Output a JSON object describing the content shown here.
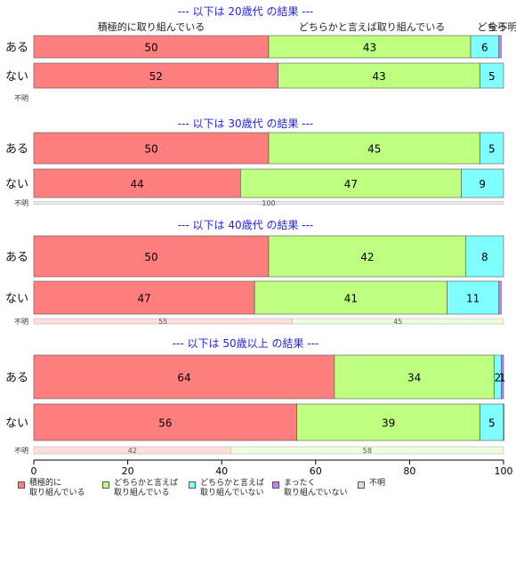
{
  "chart_data": {
    "type": "bar",
    "orientation": "horizontal",
    "stacked": true,
    "xlim": [
      0,
      100
    ],
    "x_ticks": [
      "0",
      "20",
      "40",
      "60",
      "80",
      "100"
    ],
    "categories": [
      "積極的に取り組んでいる",
      "どちらかと言えば取り組んでいる",
      "どちらかと言えば取り組んでいない",
      "まったく取り組んでいない",
      "不明"
    ],
    "colors": [
      "#ff7f7f",
      "#bfff7f",
      "#7fffff",
      "#bf7fff",
      "#dddddd"
    ],
    "segment_labels_top": [
      "積極的に取り組んでいる",
      "どちらかと言えば取り組んでいる",
      "どちら",
      "全不明"
    ],
    "legend": [
      {
        "label": "積極的に\n取り組んでいる",
        "color": "#ff7f7f"
      },
      {
        "label": "どちらかと言えば\n取り組んでいる",
        "color": "#bfff7f"
      },
      {
        "label": "どちらかと言えば\n取り組んでいない",
        "color": "#7fffff"
      },
      {
        "label": "まったく\n取り組んでいない",
        "color": "#bf7fff"
      },
      {
        "label": "不明",
        "color": "#dddddd"
      }
    ],
    "groups": [
      {
        "title": "--- 以下は 20歳代 の結果 ---",
        "rows": [
          {
            "label": "ある",
            "values": [
              50,
              43,
              6,
              0.5,
              0
            ],
            "labels": [
              "50",
              "43",
              "6",
              "",
              ""
            ]
          },
          {
            "label": "ない",
            "values": [
              52,
              43,
              5,
              0,
              0
            ],
            "labels": [
              "52",
              "43",
              "5",
              "",
              ""
            ]
          }
        ],
        "unknown": {
          "label": "不明",
          "values": [],
          "labels": []
        }
      },
      {
        "title": "--- 以下は 30歳代 の結果 ---",
        "rows": [
          {
            "label": "ある",
            "values": [
              50,
              45,
              5,
              0,
              0
            ],
            "labels": [
              "50",
              "45",
              "5",
              "",
              ""
            ]
          },
          {
            "label": "ない",
            "values": [
              44,
              47,
              9,
              0,
              0
            ],
            "labels": [
              "44",
              "47",
              "9",
              "",
              ""
            ]
          }
        ],
        "unknown": {
          "label": "不明",
          "values": [
            0,
            0,
            0,
            0,
            100
          ],
          "labels": [
            "",
            "",
            "",
            "",
            "100"
          ]
        }
      },
      {
        "title": "--- 以下は 40歳代 の結果 ---",
        "rows": [
          {
            "label": "ある",
            "values": [
              50,
              42,
              8,
              0,
              0
            ],
            "labels": [
              "50",
              "42",
              "8",
              "",
              ""
            ]
          },
          {
            "label": "ない",
            "values": [
              47,
              41,
              11,
              0.5,
              0
            ],
            "labels": [
              "47",
              "41",
              "11",
              "",
              ""
            ]
          }
        ],
        "unknown": {
          "label": "不明",
          "values": [
            55,
            45,
            0,
            0,
            0
          ],
          "labels": [
            "55",
            "45",
            "",
            "",
            ""
          ]
        }
      },
      {
        "title": "--- 以下は 50歳以上 の結果 ---",
        "rows": [
          {
            "label": "ある",
            "values": [
              64,
              34,
              1.5,
              0.8,
              0
            ],
            "labels": [
              "64",
              "34",
              "2",
              "1",
              ""
            ]
          },
          {
            "label": "ない",
            "values": [
              56,
              39,
              5,
              0.3,
              0
            ],
            "labels": [
              "56",
              "39",
              "5",
              "",
              ""
            ]
          }
        ],
        "unknown": {
          "label": "不明",
          "values": [
            42,
            58,
            0,
            0,
            0
          ],
          "labels": [
            "42",
            "58",
            "",
            "",
            ""
          ]
        }
      }
    ]
  }
}
